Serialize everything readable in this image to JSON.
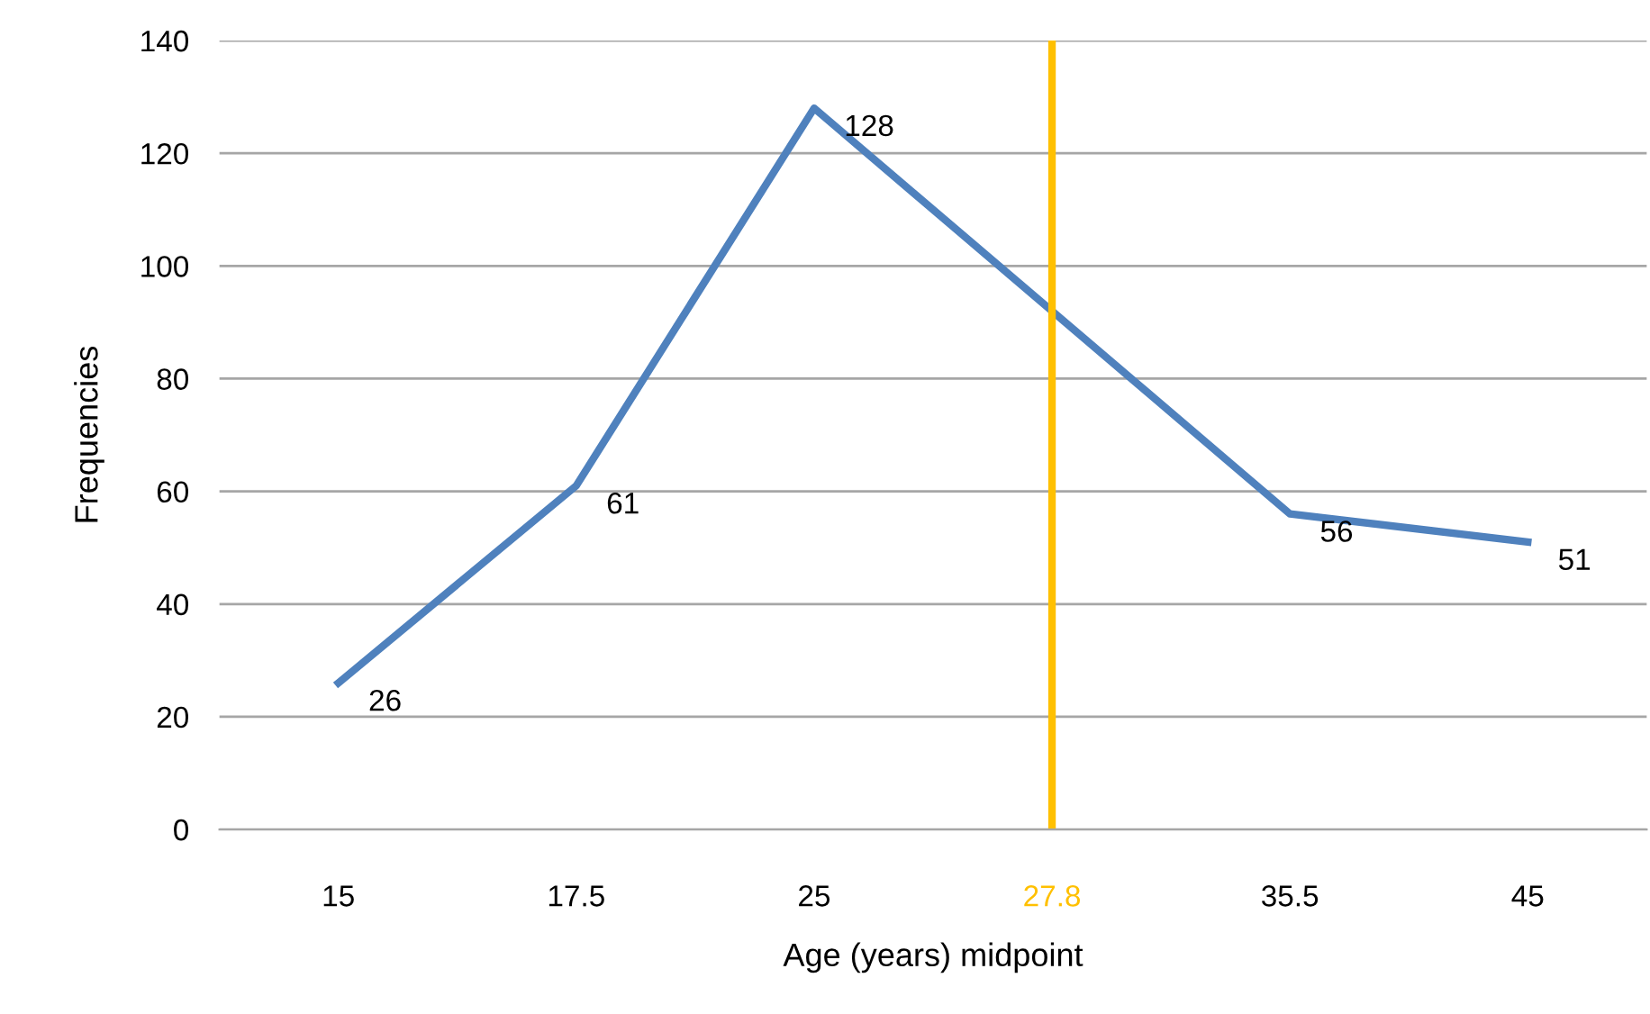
{
  "chart_data": {
    "type": "line",
    "xlabel": "Age (years) midpoint",
    "ylabel": "Frequencies",
    "categories": [
      "15",
      "17.5",
      "25",
      "27.8",
      "35.5",
      "45"
    ],
    "series": [
      {
        "color": "#4f81bd",
        "values": [
          26,
          61,
          128,
          null,
          56,
          51
        ]
      }
    ],
    "ylim": [
      0,
      140
    ],
    "yticks": [
      0,
      20,
      40,
      60,
      80,
      100,
      120,
      140
    ],
    "grid": "y",
    "data_labels": true,
    "marker": "none",
    "line_style": "solid",
    "ref_lines": [
      {
        "axis": "x",
        "value": "27.8",
        "color": "#ffc000"
      }
    ]
  }
}
